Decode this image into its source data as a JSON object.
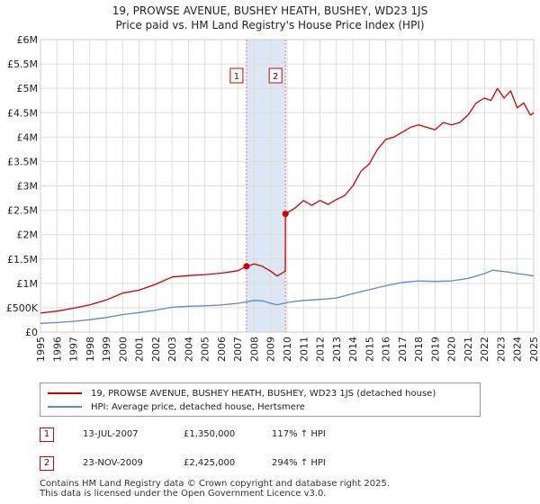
{
  "chart_data": {
    "type": "line",
    "title": "19, PROWSE AVENUE, BUSHEY HEATH, BUSHEY, WD23 1JS",
    "subtitle": "Price paid vs. HM Land Registry's House Price Index (HPI)",
    "xlim": [
      1995.0,
      2025.0
    ],
    "ylim": [
      0,
      6000000
    ],
    "x_ticks": [
      "1995",
      "1996",
      "1997",
      "1998",
      "1999",
      "2000",
      "2001",
      "2002",
      "2003",
      "2004",
      "2005",
      "2006",
      "2007",
      "2008",
      "2009",
      "2010",
      "2011",
      "2012",
      "2013",
      "2014",
      "2015",
      "2016",
      "2017",
      "2018",
      "2019",
      "2020",
      "2021",
      "2022",
      "2023",
      "2024",
      "2025"
    ],
    "y_ticks": [
      {
        "value": 0,
        "label": "£0"
      },
      {
        "value": 500000,
        "label": "£500K"
      },
      {
        "value": 1000000,
        "label": "£1M"
      },
      {
        "value": 1500000,
        "label": "£1.5M"
      },
      {
        "value": 2000000,
        "label": "£2M"
      },
      {
        "value": 2500000,
        "label": "£2.5M"
      },
      {
        "value": 3000000,
        "label": "£3M"
      },
      {
        "value": 3500000,
        "label": "£3.5M"
      },
      {
        "value": 4000000,
        "label": "£4M"
      },
      {
        "value": 4500000,
        "label": "£4.5M"
      },
      {
        "value": 5000000,
        "label": "£5M"
      },
      {
        "value": 5500000,
        "label": "£5.5M"
      },
      {
        "value": 6000000,
        "label": "£6M"
      }
    ],
    "grid": true,
    "shaded_region": [
      2007.53,
      2009.9
    ],
    "series": [
      {
        "name": "19, PROWSE AVENUE, BUSHEY HEATH, BUSHEY, WD23 1JS (detached house)",
        "color": "#cc0000",
        "x": [
          1995.0,
          1996.0,
          1997.0,
          1998.0,
          1999.0,
          2000.0,
          2001.0,
          2002.0,
          2003.0,
          2004.0,
          2005.0,
          2006.0,
          2007.0,
          2007.53,
          2008.0,
          2008.5,
          2009.0,
          2009.4,
          2009.89,
          2009.9,
          2010.5,
          2011.0,
          2011.5,
          2012.0,
          2012.5,
          2013.0,
          2013.5,
          2014.0,
          2014.5,
          2015.0,
          2015.5,
          2016.0,
          2016.5,
          2017.0,
          2017.5,
          2018.0,
          2018.5,
          2019.0,
          2019.5,
          2020.0,
          2020.5,
          2021.0,
          2021.5,
          2022.0,
          2022.4,
          2022.8,
          2023.2,
          2023.6,
          2024.0,
          2024.4,
          2024.8,
          2025.0
        ],
        "y": [
          390000,
          430000,
          490000,
          560000,
          660000,
          800000,
          860000,
          980000,
          1130000,
          1160000,
          1180000,
          1210000,
          1260000,
          1350000,
          1400000,
          1350000,
          1250000,
          1150000,
          1250000,
          2425000,
          2550000,
          2700000,
          2600000,
          2700000,
          2620000,
          2720000,
          2800000,
          3000000,
          3300000,
          3450000,
          3750000,
          3950000,
          4000000,
          4100000,
          4200000,
          4250000,
          4200000,
          4150000,
          4300000,
          4250000,
          4300000,
          4450000,
          4700000,
          4800000,
          4750000,
          5000000,
          4800000,
          4950000,
          4600000,
          4700000,
          4450000,
          4500000
        ]
      },
      {
        "name": "HPI: Average price, detached house, Hertsmere",
        "color": "#5b8ac4",
        "x": [
          1995.0,
          1996.0,
          1997.0,
          1998.0,
          1999.0,
          2000.0,
          2001.0,
          2002.0,
          2003.0,
          2004.0,
          2005.0,
          2006.0,
          2007.0,
          2007.53,
          2008.0,
          2008.5,
          2009.0,
          2009.4,
          2010.0,
          2011.0,
          2012.0,
          2013.0,
          2014.0,
          2015.0,
          2016.0,
          2017.0,
          2018.0,
          2019.0,
          2020.0,
          2021.0,
          2021.5,
          2022.0,
          2022.5,
          2023.0,
          2023.5,
          2024.0,
          2024.5,
          2025.0
        ],
        "y": [
          180000,
          195000,
          220000,
          255000,
          300000,
          360000,
          400000,
          450000,
          510000,
          530000,
          540000,
          555000,
          590000,
          620000,
          650000,
          640000,
          590000,
          560000,
          610000,
          650000,
          670000,
          700000,
          790000,
          870000,
          950000,
          1020000,
          1050000,
          1040000,
          1050000,
          1100000,
          1150000,
          1200000,
          1270000,
          1250000,
          1230000,
          1200000,
          1180000,
          1150000
        ]
      }
    ],
    "annotations": [
      {
        "id": "1",
        "x": 2007.53,
        "y": 1350000
      },
      {
        "id": "2",
        "x": 2009.9,
        "y": 2425000
      }
    ]
  },
  "legend": {
    "entries": [
      {
        "label": "19, PROWSE AVENUE, BUSHEY HEATH, BUSHEY, WD23 1JS (detached house)",
        "color": "#cc0000"
      },
      {
        "label": "HPI: Average price, detached house, Hertsmere",
        "color": "#5b8ac4"
      }
    ]
  },
  "transactions": [
    {
      "id": "1",
      "date": "13-JUL-2007",
      "price": "£1,350,000",
      "hpi": "117% ↑ HPI"
    },
    {
      "id": "2",
      "date": "23-NOV-2009",
      "price": "£2,425,000",
      "hpi": "294% ↑ HPI"
    }
  ],
  "footer": {
    "line1": "Contains HM Land Registry data © Crown copyright and database right 2025.",
    "line2": "This data is licensed under the Open Government Licence v3.0."
  }
}
